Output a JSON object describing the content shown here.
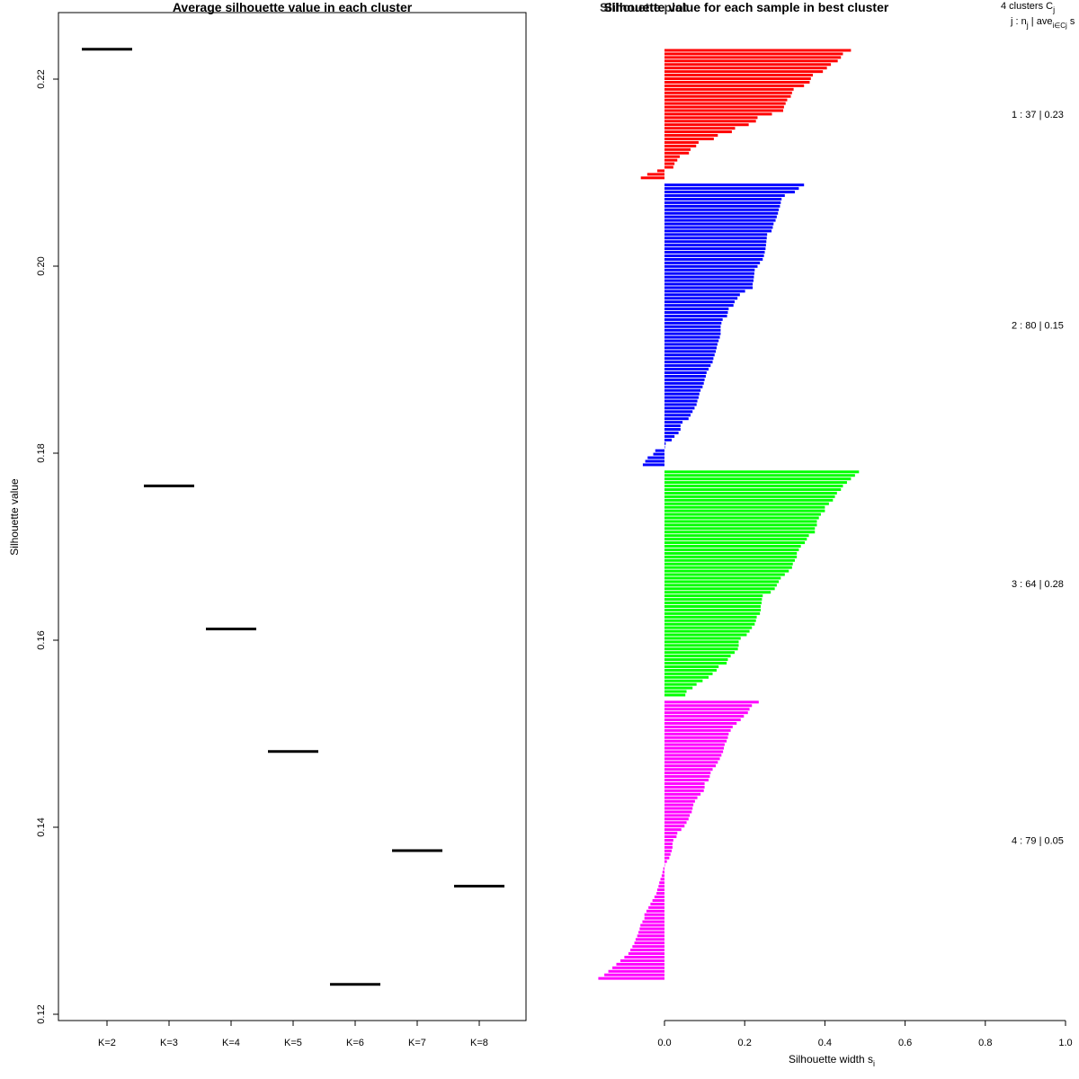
{
  "chart_data": [
    {
      "type": "line",
      "title": "Average silhouette value in each cluster",
      "xlabel": "",
      "ylabel": "Silhouette value",
      "categories": [
        "K=2",
        "K=3",
        "K=4",
        "K=5",
        "K=6",
        "K=7",
        "K=8"
      ],
      "values": [
        0.2232,
        0.1765,
        0.1612,
        0.1481,
        0.1232,
        0.1375,
        0.1337
      ],
      "ylim": [
        0.12,
        0.225
      ],
      "yticks": [
        "0.12",
        "0.14",
        "0.16",
        "0.18",
        "0.20",
        "0.22"
      ]
    },
    {
      "type": "bar",
      "title": "Silhouette value for each sample in best cluster",
      "overlap_title": "Silhouette plot",
      "xlabel": "Silhouette width s",
      "xlabel_sub": "i",
      "xlim": [
        0,
        1
      ],
      "xticks": [
        "0.0",
        "0.2",
        "0.4",
        "0.6",
        "0.8",
        "1.0"
      ],
      "legend_header": {
        "line1": "4 clusters C",
        "line1_sub": "j",
        "line2": "j : n",
        "line2_sub": "j",
        "line2_mid": " | ave",
        "line2_sub2": "i∈Cj",
        "line2_tail": " s"
      },
      "clusters": [
        {
          "id": 1,
          "n": 37,
          "avg": "0.23",
          "label": "1 :  37  |  0.23",
          "color": "#ff0000",
          "widths": [
            0.465,
            0.445,
            0.44,
            0.432,
            0.415,
            0.405,
            0.395,
            0.37,
            0.365,
            0.362,
            0.348,
            0.322,
            0.318,
            0.315,
            0.306,
            0.302,
            0.298,
            0.296,
            0.268,
            0.232,
            0.228,
            0.21,
            0.176,
            0.168,
            0.133,
            0.123,
            0.085,
            0.079,
            0.065,
            0.061,
            0.038,
            0.032,
            0.025,
            0.022,
            -0.018,
            -0.043,
            -0.059
          ]
        },
        {
          "id": 2,
          "n": 80,
          "avg": "0.15",
          "label": "2 :  80  |  0.15",
          "color": "#0000ff",
          "widths": [
            0.348,
            0.335,
            0.325,
            0.3,
            0.292,
            0.29,
            0.288,
            0.285,
            0.283,
            0.28,
            0.277,
            0.272,
            0.27,
            0.267,
            0.256,
            0.255,
            0.254,
            0.253,
            0.252,
            0.25,
            0.248,
            0.245,
            0.238,
            0.232,
            0.225,
            0.224,
            0.223,
            0.222,
            0.22,
            0.22,
            0.201,
            0.188,
            0.182,
            0.175,
            0.172,
            0.16,
            0.158,
            0.156,
            0.145,
            0.142,
            0.14,
            0.14,
            0.14,
            0.138,
            0.135,
            0.132,
            0.13,
            0.128,
            0.125,
            0.122,
            0.12,
            0.115,
            0.11,
            0.105,
            0.103,
            0.1,
            0.098,
            0.095,
            0.09,
            0.087,
            0.085,
            0.082,
            0.08,
            0.075,
            0.07,
            0.065,
            0.06,
            0.045,
            0.04,
            0.04,
            0.035,
            0.025,
            0.018,
            0.003,
            0.001,
            -0.023,
            -0.028,
            -0.042,
            -0.048,
            -0.054
          ]
        },
        {
          "id": 3,
          "n": 64,
          "avg": "0.28",
          "label": "3 :  64  |  0.28",
          "color": "#00ff00",
          "widths": [
            0.485,
            0.475,
            0.465,
            0.455,
            0.445,
            0.44,
            0.43,
            0.425,
            0.42,
            0.41,
            0.4,
            0.4,
            0.39,
            0.385,
            0.38,
            0.38,
            0.375,
            0.375,
            0.36,
            0.355,
            0.35,
            0.34,
            0.335,
            0.33,
            0.33,
            0.325,
            0.32,
            0.318,
            0.31,
            0.3,
            0.29,
            0.285,
            0.28,
            0.275,
            0.265,
            0.245,
            0.243,
            0.242,
            0.24,
            0.24,
            0.238,
            0.23,
            0.228,
            0.225,
            0.218,
            0.212,
            0.205,
            0.19,
            0.185,
            0.185,
            0.183,
            0.175,
            0.165,
            0.158,
            0.155,
            0.135,
            0.13,
            0.12,
            0.11,
            0.095,
            0.08,
            0.07,
            0.055,
            0.052
          ]
        },
        {
          "id": 4,
          "n": 79,
          "avg": "0.05",
          "label": "4 :  79  |  0.05",
          "color": "#ff00ff",
          "widths": [
            0.235,
            0.218,
            0.212,
            0.208,
            0.198,
            0.19,
            0.18,
            0.17,
            0.165,
            0.16,
            0.158,
            0.155,
            0.15,
            0.148,
            0.146,
            0.142,
            0.138,
            0.133,
            0.128,
            0.12,
            0.115,
            0.113,
            0.11,
            0.1,
            0.1,
            0.098,
            0.09,
            0.082,
            0.076,
            0.072,
            0.07,
            0.068,
            0.063,
            0.06,
            0.055,
            0.05,
            0.042,
            0.032,
            0.03,
            0.022,
            0.02,
            0.02,
            0.018,
            0.015,
            0.012,
            0.006,
            0.001,
            -0.003,
            -0.005,
            -0.007,
            -0.01,
            -0.013,
            -0.015,
            -0.018,
            -0.02,
            -0.025,
            -0.03,
            -0.035,
            -0.04,
            -0.045,
            -0.05,
            -0.05,
            -0.055,
            -0.06,
            -0.062,
            -0.065,
            -0.068,
            -0.072,
            -0.075,
            -0.08,
            -0.085,
            -0.09,
            -0.1,
            -0.11,
            -0.12,
            -0.13,
            -0.14,
            -0.15,
            -0.165
          ]
        }
      ]
    }
  ]
}
